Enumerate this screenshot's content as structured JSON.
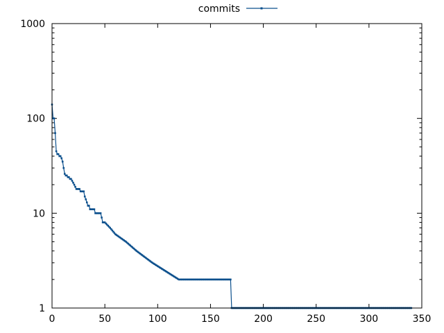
{
  "chart_data": {
    "type": "line",
    "title": "",
    "xlabel": "",
    "ylabel": "",
    "xlim": [
      0,
      350
    ],
    "ylim": [
      1,
      1000
    ],
    "y_scale": "log",
    "x_ticks": [
      0,
      50,
      100,
      150,
      200,
      250,
      300,
      350
    ],
    "y_ticks": [
      1,
      10,
      100,
      1000
    ],
    "grid": false,
    "legend_position": "top-center",
    "series": [
      {
        "name": "commits",
        "color": "#0b4f8c",
        "x": [
          0,
          1,
          2,
          3,
          4,
          5,
          6,
          7,
          8,
          9,
          10,
          11,
          12,
          13,
          14,
          15,
          16,
          17,
          18,
          19,
          20,
          21,
          22,
          23,
          24,
          25,
          26,
          27,
          28,
          29,
          30,
          31,
          32,
          33,
          34,
          35,
          36,
          37,
          38,
          39,
          40,
          41,
          42,
          43,
          44,
          45,
          46,
          47,
          48,
          50,
          55,
          60,
          70,
          80,
          95,
          120,
          169,
          170,
          340
        ],
        "values": [
          140,
          100,
          100,
          70,
          45,
          42,
          42,
          40,
          40,
          38,
          35,
          30,
          26,
          25,
          25,
          24,
          24,
          23,
          23,
          22,
          21,
          20,
          19,
          18,
          18,
          18,
          18,
          17,
          17,
          17,
          17,
          15,
          14,
          13,
          12,
          12,
          11,
          11,
          11,
          11,
          11,
          10,
          10,
          10,
          10,
          10,
          10,
          9,
          8,
          8,
          7,
          6,
          5,
          4,
          3,
          2,
          2,
          1,
          1
        ]
      }
    ]
  }
}
